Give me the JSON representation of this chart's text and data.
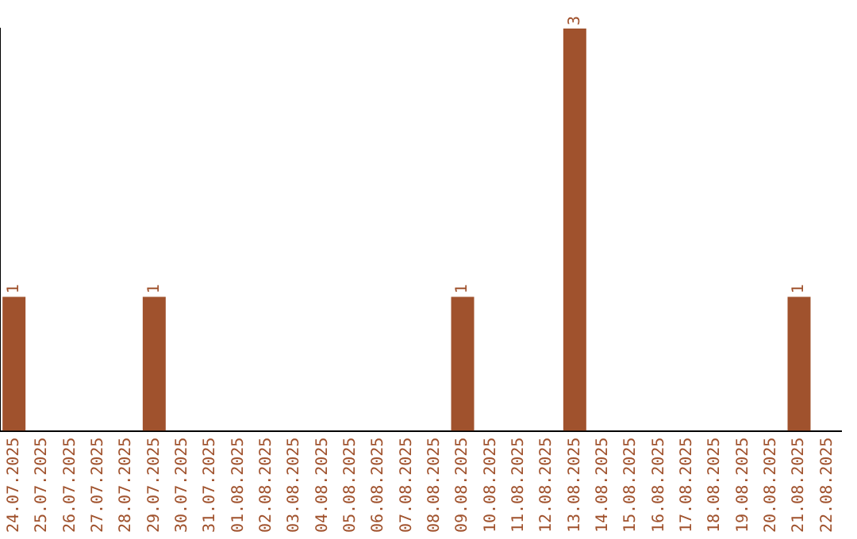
{
  "chart_data": {
    "type": "bar",
    "categories": [
      "24.07.2025",
      "25.07.2025",
      "26.07.2025",
      "27.07.2025",
      "28.07.2025",
      "29.07.2025",
      "30.07.2025",
      "31.07.2025",
      "01.08.2025",
      "02.08.2025",
      "03.08.2025",
      "04.08.2025",
      "05.08.2025",
      "06.08.2025",
      "07.08.2025",
      "08.08.2025",
      "09.08.2025",
      "10.08.2025",
      "11.08.2025",
      "12.08.2025",
      "13.08.2025",
      "14.08.2025",
      "15.08.2025",
      "16.08.2025",
      "17.08.2025",
      "18.08.2025",
      "19.08.2025",
      "20.08.2025",
      "21.08.2025",
      "22.08.2025"
    ],
    "values": [
      1,
      0,
      0,
      0,
      0,
      1,
      0,
      0,
      0,
      0,
      0,
      0,
      0,
      0,
      0,
      0,
      1,
      0,
      0,
      0,
      3,
      0,
      0,
      0,
      0,
      0,
      0,
      0,
      1,
      0
    ],
    "value_labels": [
      "1",
      null,
      null,
      null,
      null,
      "1",
      null,
      null,
      null,
      null,
      null,
      null,
      null,
      null,
      null,
      null,
      "1",
      null,
      null,
      null,
      "3",
      null,
      null,
      null,
      null,
      null,
      null,
      null,
      "1",
      null
    ],
    "color": "#a0522d",
    "grid": false,
    "legend": false,
    "tick_labels": "x"
  }
}
